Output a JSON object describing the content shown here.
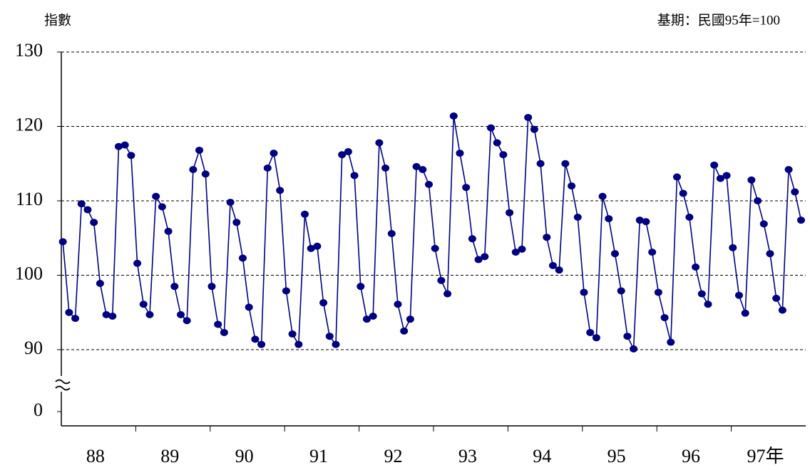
{
  "chart_data": {
    "type": "line",
    "y_label": "指數",
    "subtitle": "基期：民國95年=100",
    "categories": [
      null,
      null,
      null,
      null,
      null,
      "88",
      null,
      null,
      null,
      null,
      null,
      null,
      null,
      null,
      null,
      null,
      null,
      "89",
      null,
      null,
      null,
      null,
      null,
      null,
      null,
      null,
      null,
      null,
      null,
      "90",
      null,
      null,
      null,
      null,
      null,
      null,
      null,
      null,
      null,
      null,
      null,
      "91",
      null,
      null,
      null,
      null,
      null,
      null,
      null,
      null,
      null,
      null,
      null,
      "92",
      null,
      null,
      null,
      null,
      null,
      null,
      null,
      null,
      null,
      null,
      null,
      "93",
      null,
      null,
      null,
      null,
      null,
      null,
      null,
      null,
      null,
      null,
      null,
      "94",
      null,
      null,
      null,
      null,
      null,
      null,
      null,
      null,
      null,
      null,
      null,
      "95",
      null,
      null,
      null,
      null,
      null,
      null,
      null,
      null,
      null,
      null,
      null,
      "96",
      null,
      null,
      null,
      null,
      null,
      null,
      null,
      null,
      null,
      null,
      null,
      "97年",
      null,
      null,
      null,
      null,
      null,
      null
    ],
    "series": [
      {
        "color": "#000080",
        "values": [
          104.5,
          95.0,
          94.2,
          109.6,
          108.8,
          107.1,
          98.9,
          94.7,
          94.5,
          117.3,
          117.5,
          116.1,
          101.6,
          96.1,
          94.7,
          110.6,
          109.2,
          105.9,
          98.5,
          94.7,
          93.9,
          114.2,
          116.8,
          113.6,
          98.5,
          93.4,
          92.3,
          109.8,
          107.1,
          102.3,
          95.7,
          91.4,
          90.7,
          114.4,
          116.4,
          111.4,
          97.9,
          92.1,
          90.7,
          108.2,
          103.6,
          103.9,
          96.3,
          91.8,
          90.7,
          116.2,
          116.6,
          113.4,
          98.5,
          94.1,
          94.5,
          117.8,
          114.4,
          105.6,
          96.1,
          92.5,
          94.1,
          114.6,
          114.2,
          112.2,
          103.6,
          99.3,
          97.5,
          121.4,
          116.4,
          111.8,
          104.9,
          102.1,
          102.5,
          119.8,
          117.8,
          116.2,
          108.4,
          103.1,
          103.5,
          121.2,
          119.6,
          115.0,
          105.1,
          101.3,
          100.7,
          115.0,
          112.0,
          107.8,
          97.7,
          92.3,
          91.6,
          110.6,
          107.6,
          102.9,
          97.9,
          91.8,
          90.1,
          107.4,
          107.2,
          103.1,
          97.7,
          94.3,
          91.0,
          113.2,
          111.0,
          107.8,
          101.1,
          97.5,
          96.1,
          114.8,
          113.0,
          113.4,
          103.7,
          97.3,
          94.9,
          112.8,
          110.0,
          106.9,
          102.9,
          96.9,
          95.3,
          114.2,
          111.2,
          107.4
        ]
      }
    ],
    "ylim": [
      0,
      130
    ],
    "yticks": [
      0,
      90,
      100,
      110,
      120,
      130
    ],
    "y_break": true,
    "grid": true
  }
}
